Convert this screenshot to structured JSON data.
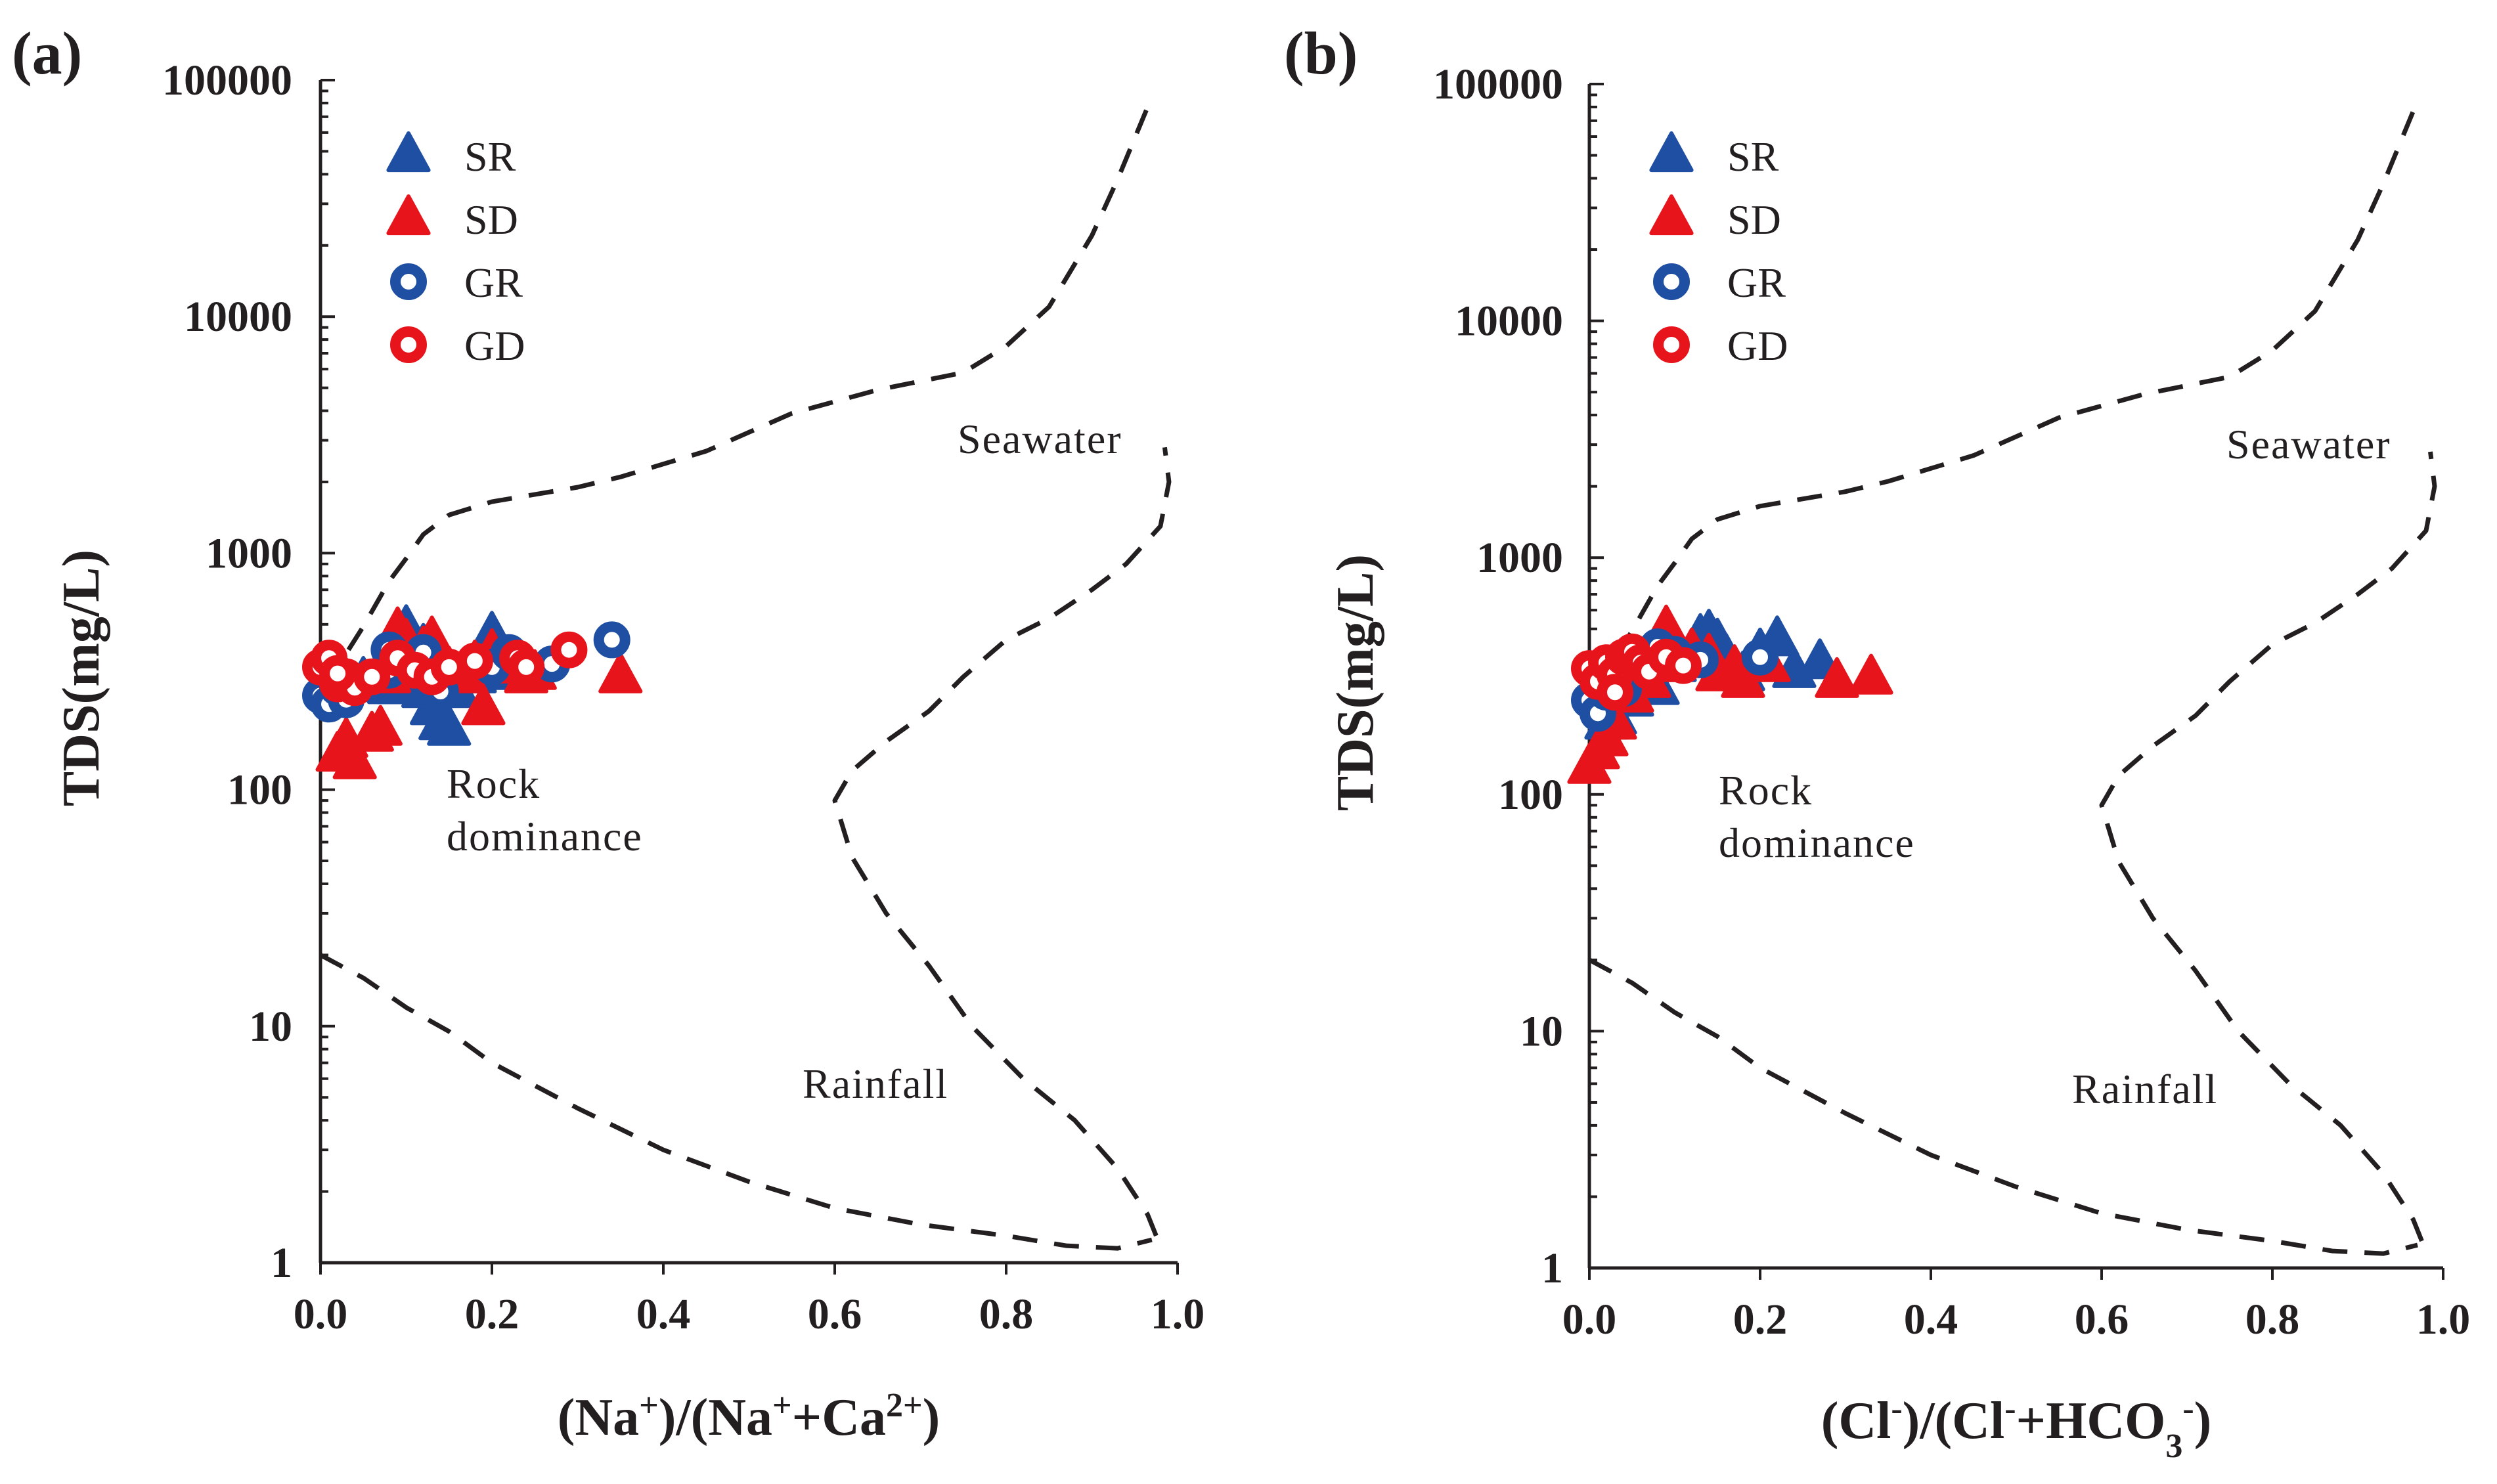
{
  "figure": {
    "panels": [
      "a",
      "b"
    ]
  },
  "chart_data": [
    {
      "type": "scatter",
      "panel_label": "(a)",
      "xlabel_parts": [
        [
          "(Na",
          "base"
        ],
        [
          "+",
          "sup"
        ],
        [
          ")/(Na",
          "base"
        ],
        [
          "+",
          "sup"
        ],
        [
          "+Ca",
          "base"
        ],
        [
          "2+",
          "sup"
        ],
        [
          ")",
          "base"
        ]
      ],
      "ylabel": "TDS(mg/L)",
      "xlim": [
        0,
        1.0
      ],
      "ylim": [
        1,
        100000
      ],
      "yscale": "log",
      "xticks": [
        "0.0",
        "0.2",
        "0.4",
        "0.6",
        "0.8",
        "1.0"
      ],
      "yticks": [
        "1",
        "10",
        "100",
        "1000",
        "10000",
        "100000"
      ],
      "legend": [
        {
          "name": "SR",
          "marker": "triangle",
          "color": "#1f4fa3"
        },
        {
          "name": "SD",
          "marker": "triangle",
          "color": "#e8141c"
        },
        {
          "name": "GR",
          "marker": "ring",
          "color": "#1f4fa3"
        },
        {
          "name": "GD",
          "marker": "ring",
          "color": "#e8141c"
        }
      ],
      "annotations": {
        "seawater": "Seawater",
        "rock": [
          "Rock",
          "dominance"
        ],
        "rainfall": "Rainfall"
      },
      "boundary_curves": [
        {
          "name": "upper",
          "points": [
            [
              0.0,
              290
            ],
            [
              0.02,
              330
            ],
            [
              0.05,
              490
            ],
            [
              0.08,
              760
            ],
            [
              0.1,
              950
            ],
            [
              0.12,
              1200
            ],
            [
              0.15,
              1450
            ],
            [
              0.2,
              1650
            ],
            [
              0.3,
              1900
            ],
            [
              0.35,
              2100
            ],
            [
              0.45,
              2700
            ],
            [
              0.55,
              3900
            ],
            [
              0.65,
              4900
            ],
            [
              0.75,
              5800
            ],
            [
              0.8,
              7500
            ],
            [
              0.85,
              11000
            ],
            [
              0.9,
              22000
            ],
            [
              0.93,
              38000
            ],
            [
              0.97,
              85000
            ]
          ]
        },
        {
          "name": "lower",
          "points": [
            [
              0.0,
              20
            ],
            [
              0.05,
              16
            ],
            [
              0.1,
              12
            ],
            [
              0.15,
              9.5
            ],
            [
              0.2,
              7
            ],
            [
              0.3,
              4.5
            ],
            [
              0.4,
              3
            ],
            [
              0.5,
              2.2
            ],
            [
              0.6,
              1.7
            ],
            [
              0.7,
              1.45
            ],
            [
              0.8,
              1.3
            ],
            [
              0.87,
              1.18
            ],
            [
              0.93,
              1.15
            ],
            [
              0.97,
              1.25
            ]
          ]
        },
        {
          "name": "rainfall-seawater",
          "points": [
            [
              0.975,
              1.3
            ],
            [
              0.965,
              1.6
            ],
            [
              0.93,
              2.5
            ],
            [
              0.88,
              4
            ],
            [
              0.82,
              6
            ],
            [
              0.76,
              10
            ],
            [
              0.71,
              18
            ],
            [
              0.66,
              30
            ],
            [
              0.62,
              52
            ],
            [
              0.6,
              90
            ],
            [
              0.62,
              120
            ],
            [
              0.66,
              160
            ],
            [
              0.71,
              215
            ],
            [
              0.75,
              300
            ],
            [
              0.8,
              430
            ],
            [
              0.85,
              530
            ],
            [
              0.9,
              700
            ],
            [
              0.94,
              900
            ],
            [
              0.98,
              1300
            ],
            [
              0.99,
              2000
            ],
            [
              0.985,
              2800
            ]
          ]
        }
      ],
      "series": [
        {
          "name": "SR",
          "points": [
            [
              0.05,
              290
            ],
            [
              0.08,
              270
            ],
            [
              0.1,
              480
            ],
            [
              0.11,
              340
            ],
            [
              0.12,
              400
            ],
            [
              0.13,
              220
            ],
            [
              0.14,
              190
            ],
            [
              0.15,
              180
            ],
            [
              0.16,
              260
            ],
            [
              0.18,
              300
            ],
            [
              0.2,
              450
            ],
            [
              0.21,
              310
            ],
            [
              0.22,
              340
            ],
            [
              0.12,
              260
            ],
            [
              0.09,
              270
            ]
          ]
        },
        {
          "name": "SD",
          "points": [
            [
              0.02,
              140
            ],
            [
              0.03,
              160
            ],
            [
              0.04,
              130
            ],
            [
              0.06,
              170
            ],
            [
              0.07,
              180
            ],
            [
              0.08,
              300
            ],
            [
              0.09,
              470
            ],
            [
              0.1,
              420
            ],
            [
              0.12,
              390
            ],
            [
              0.13,
              430
            ],
            [
              0.15,
              320
            ],
            [
              0.17,
              300
            ],
            [
              0.18,
              340
            ],
            [
              0.19,
              220
            ],
            [
              0.2,
              380
            ],
            [
              0.22,
              330
            ],
            [
              0.24,
              300
            ],
            [
              0.25,
              310
            ],
            [
              0.35,
              300
            ]
          ]
        },
        {
          "name": "GR",
          "points": [
            [
              0.0,
              250
            ],
            [
              0.01,
              230
            ],
            [
              0.02,
              270
            ],
            [
              0.03,
              240
            ],
            [
              0.05,
              280
            ],
            [
              0.08,
              320
            ],
            [
              0.12,
              380
            ],
            [
              0.13,
              300
            ],
            [
              0.14,
              260
            ],
            [
              0.2,
              330
            ],
            [
              0.22,
              380
            ],
            [
              0.27,
              340
            ],
            [
              0.34,
              430
            ],
            [
              0.08,
              390
            ]
          ]
        },
        {
          "name": "GD",
          "points": [
            [
              0.0,
              330
            ],
            [
              0.01,
              360
            ],
            [
              0.02,
              280
            ],
            [
              0.03,
              300
            ],
            [
              0.04,
              270
            ],
            [
              0.06,
              300
            ],
            [
              0.09,
              360
            ],
            [
              0.11,
              320
            ],
            [
              0.13,
              300
            ],
            [
              0.15,
              330
            ],
            [
              0.18,
              350
            ],
            [
              0.23,
              360
            ],
            [
              0.24,
              330
            ],
            [
              0.29,
              390
            ],
            [
              0.02,
              310
            ]
          ]
        }
      ]
    },
    {
      "type": "scatter",
      "panel_label": "(b)",
      "xlabel_parts": [
        [
          "(Cl",
          "base"
        ],
        [
          "-",
          "sup"
        ],
        [
          ")/(Cl",
          "base"
        ],
        [
          "-",
          "sup"
        ],
        [
          "+HCO",
          "base"
        ],
        [
          "3",
          "sub"
        ],
        [
          "-",
          "sup"
        ],
        [
          ")",
          "base"
        ]
      ],
      "ylabel": "TDS(mg/L)",
      "xlim": [
        0,
        1.0
      ],
      "ylim": [
        1,
        100000
      ],
      "yscale": "log",
      "xticks": [
        "0.0",
        "0.2",
        "0.4",
        "0.6",
        "0.8",
        "1.0"
      ],
      "yticks": [
        "1",
        "10",
        "100",
        "1000",
        "10000",
        "100000"
      ],
      "legend": [
        {
          "name": "SR",
          "marker": "triangle",
          "color": "#1f4fa3"
        },
        {
          "name": "SD",
          "marker": "triangle",
          "color": "#e8141c"
        },
        {
          "name": "GR",
          "marker": "ring",
          "color": "#1f4fa3"
        },
        {
          "name": "GD",
          "marker": "ring",
          "color": "#e8141c"
        }
      ],
      "annotations": {
        "seawater": "Seawater",
        "rock": [
          "Rock",
          "dominance"
        ],
        "rainfall": "Rainfall"
      },
      "boundary_curves": [
        {
          "name": "upper",
          "points": [
            [
              0.0,
              290
            ],
            [
              0.02,
              330
            ],
            [
              0.05,
              490
            ],
            [
              0.08,
              760
            ],
            [
              0.1,
              950
            ],
            [
              0.12,
              1200
            ],
            [
              0.15,
              1450
            ],
            [
              0.2,
              1650
            ],
            [
              0.3,
              1900
            ],
            [
              0.35,
              2100
            ],
            [
              0.45,
              2700
            ],
            [
              0.55,
              3900
            ],
            [
              0.65,
              4900
            ],
            [
              0.75,
              5800
            ],
            [
              0.8,
              7500
            ],
            [
              0.85,
              11000
            ],
            [
              0.9,
              22000
            ],
            [
              0.93,
              38000
            ],
            [
              0.97,
              85000
            ]
          ]
        },
        {
          "name": "lower",
          "points": [
            [
              0.0,
              20
            ],
            [
              0.05,
              16
            ],
            [
              0.1,
              12
            ],
            [
              0.15,
              9.5
            ],
            [
              0.2,
              7
            ],
            [
              0.3,
              4.5
            ],
            [
              0.4,
              3
            ],
            [
              0.5,
              2.2
            ],
            [
              0.6,
              1.7
            ],
            [
              0.7,
              1.45
            ],
            [
              0.8,
              1.3
            ],
            [
              0.87,
              1.18
            ],
            [
              0.93,
              1.15
            ],
            [
              0.97,
              1.25
            ]
          ]
        },
        {
          "name": "rainfall-seawater",
          "points": [
            [
              0.975,
              1.3
            ],
            [
              0.965,
              1.6
            ],
            [
              0.93,
              2.5
            ],
            [
              0.88,
              4
            ],
            [
              0.82,
              6
            ],
            [
              0.76,
              10
            ],
            [
              0.71,
              18
            ],
            [
              0.66,
              30
            ],
            [
              0.62,
              52
            ],
            [
              0.6,
              90
            ],
            [
              0.62,
              120
            ],
            [
              0.66,
              160
            ],
            [
              0.71,
              215
            ],
            [
              0.75,
              300
            ],
            [
              0.8,
              430
            ],
            [
              0.85,
              530
            ],
            [
              0.9,
              700
            ],
            [
              0.94,
              900
            ],
            [
              0.98,
              1300
            ],
            [
              0.99,
              2000
            ],
            [
              0.985,
              2800
            ]
          ]
        }
      ],
      "series": [
        {
          "name": "SR",
          "points": [
            [
              0.02,
              200
            ],
            [
              0.03,
              210
            ],
            [
              0.05,
              250
            ],
            [
              0.07,
              300
            ],
            [
              0.08,
              280
            ],
            [
              0.1,
              350
            ],
            [
              0.12,
              400
            ],
            [
              0.13,
              460
            ],
            [
              0.14,
              480
            ],
            [
              0.15,
              440
            ],
            [
              0.16,
              380
            ],
            [
              0.18,
              320
            ],
            [
              0.2,
              400
            ],
            [
              0.22,
              450
            ],
            [
              0.24,
              330
            ],
            [
              0.27,
              360
            ]
          ]
        },
        {
          "name": "SD",
          "points": [
            [
              0.0,
              130
            ],
            [
              0.01,
              150
            ],
            [
              0.02,
              170
            ],
            [
              0.03,
              200
            ],
            [
              0.05,
              260
            ],
            [
              0.07,
              300
            ],
            [
              0.08,
              350
            ],
            [
              0.09,
              500
            ],
            [
              0.1,
              420
            ],
            [
              0.11,
              370
            ],
            [
              0.12,
              400
            ],
            [
              0.14,
              380
            ],
            [
              0.15,
              320
            ],
            [
              0.17,
              340
            ],
            [
              0.18,
              300
            ],
            [
              0.21,
              350
            ],
            [
              0.29,
              300
            ],
            [
              0.33,
              310
            ]
          ]
        },
        {
          "name": "GR",
          "points": [
            [
              0.0,
              250
            ],
            [
              0.01,
              220
            ],
            [
              0.02,
              270
            ],
            [
              0.03,
              300
            ],
            [
              0.04,
              280
            ],
            [
              0.05,
              330
            ],
            [
              0.06,
              350
            ],
            [
              0.08,
              420
            ],
            [
              0.1,
              390
            ],
            [
              0.13,
              370
            ],
            [
              0.2,
              380
            ]
          ]
        },
        {
          "name": "GD",
          "points": [
            [
              0.0,
              340
            ],
            [
              0.01,
              300
            ],
            [
              0.02,
              360
            ],
            [
              0.03,
              320
            ],
            [
              0.04,
              380
            ],
            [
              0.05,
              400
            ],
            [
              0.06,
              360
            ],
            [
              0.07,
              330
            ],
            [
              0.09,
              380
            ],
            [
              0.11,
              350
            ],
            [
              0.03,
              270
            ]
          ]
        }
      ]
    }
  ]
}
